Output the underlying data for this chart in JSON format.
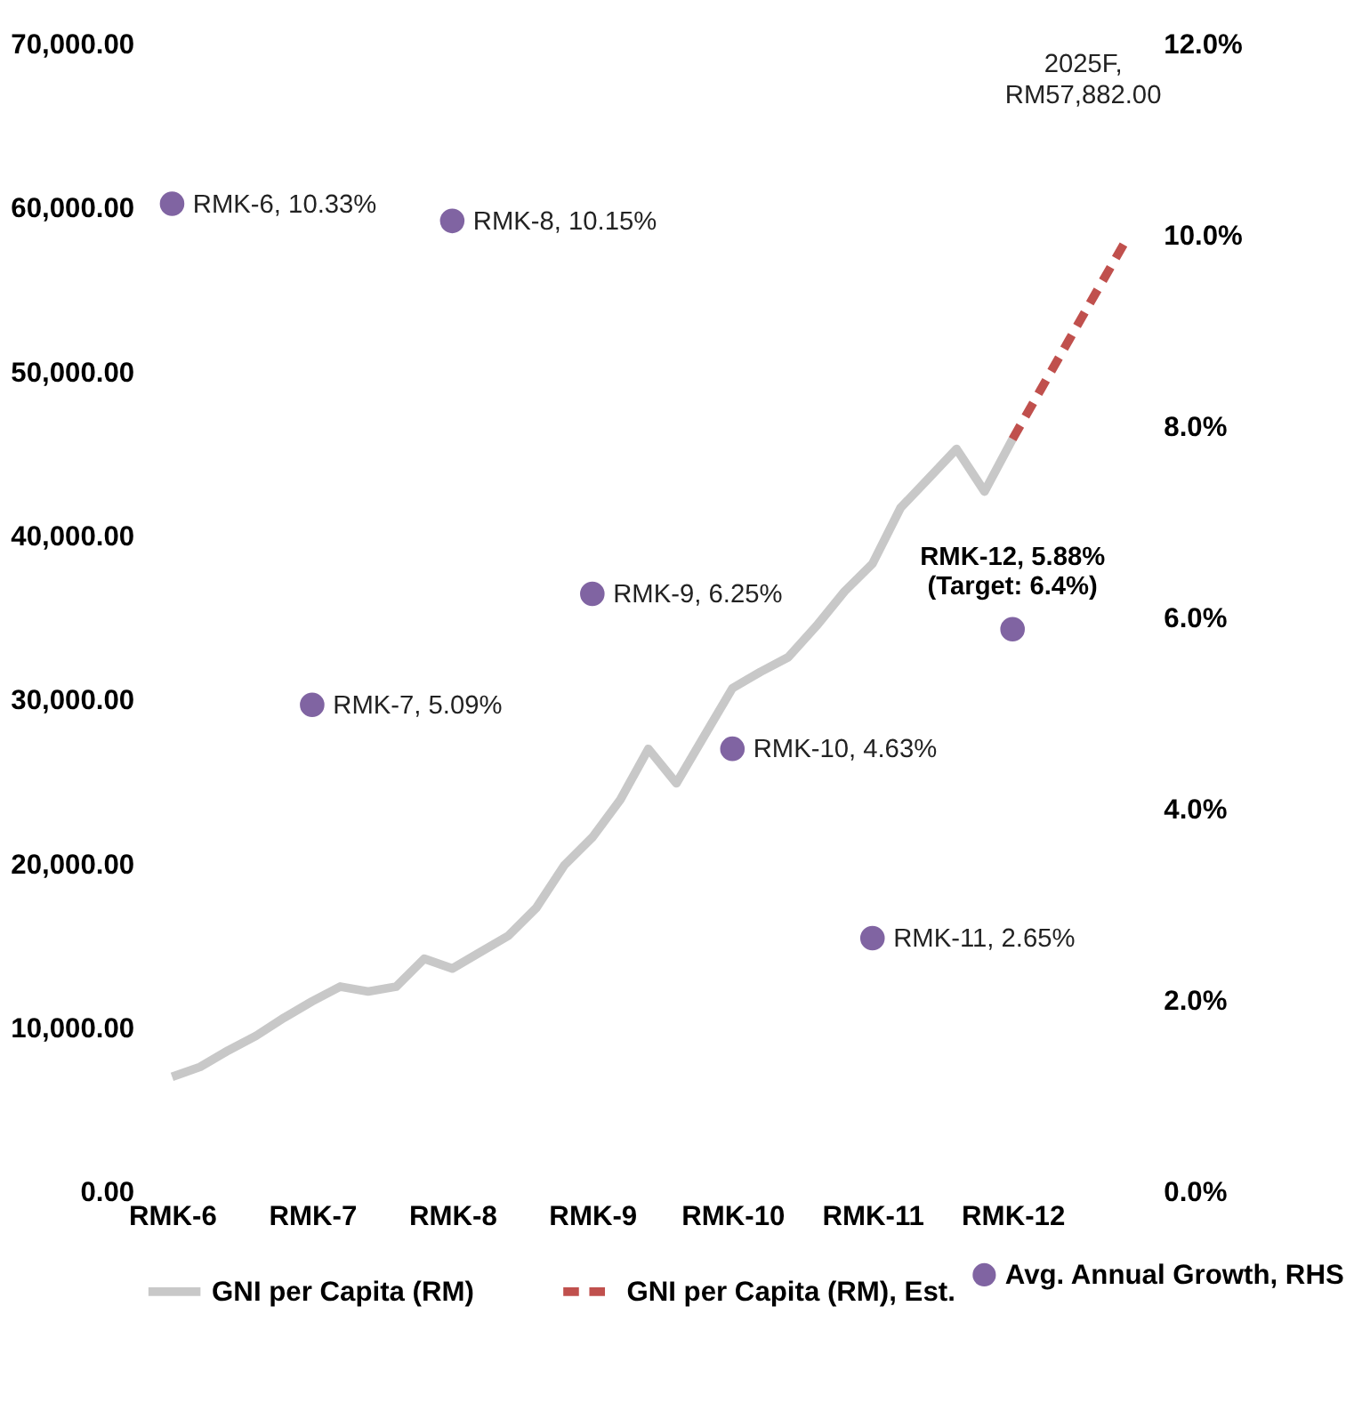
{
  "chart_data": {
    "type": "line",
    "categories": [
      "RMK-6",
      null,
      null,
      null,
      null,
      "RMK-7",
      null,
      null,
      null,
      null,
      "RMK-8",
      null,
      null,
      null,
      null,
      "RMK-9",
      null,
      null,
      null,
      null,
      "RMK-10",
      null,
      null,
      null,
      null,
      "RMK-11",
      null,
      null,
      null,
      null,
      "RMK-12",
      null,
      null,
      null,
      null
    ],
    "ylim": [
      0,
      70000
    ],
    "yticks": [
      {
        "value": 0,
        "label": "0.00"
      },
      {
        "value": 10000,
        "label": "10,000.00"
      },
      {
        "value": 20000,
        "label": "20,000.00"
      },
      {
        "value": 30000,
        "label": "30,000.00"
      },
      {
        "value": 40000,
        "label": "40,000.00"
      },
      {
        "value": 50000,
        "label": "50,000.00"
      },
      {
        "value": 60000,
        "label": "60,000.00"
      },
      {
        "value": 70000,
        "label": "70,000.00"
      }
    ],
    "y2lim": [
      0,
      12
    ],
    "y2ticks": [
      {
        "value": 0,
        "label": "0.0%"
      },
      {
        "value": 2,
        "label": "2.0%"
      },
      {
        "value": 4,
        "label": "4.0%"
      },
      {
        "value": 6,
        "label": "6.0%"
      },
      {
        "value": 8,
        "label": "8.0%"
      },
      {
        "value": 10,
        "label": "10.0%"
      },
      {
        "value": 12,
        "label": "12.0%"
      }
    ],
    "grid": false,
    "legend": "bottom",
    "series": [
      {
        "name": "GNI per Capita (RM)",
        "color": "#c8c8c8",
        "line_style": "solid",
        "values": [
          7000,
          7600,
          8600,
          9500,
          10600,
          11600,
          12500,
          12200,
          12500,
          14200,
          13600,
          14600,
          15600,
          17300,
          19900,
          21600,
          23900,
          27000,
          24900,
          27800,
          30700,
          31700,
          32600,
          34500,
          36600,
          38300,
          41700,
          43500,
          45300,
          42700,
          45900,
          null,
          null,
          null,
          null
        ]
      },
      {
        "name": "GNI per Capita (RM), Est.",
        "color": "#c0504d",
        "line_style": "dashed",
        "values": [
          null,
          null,
          null,
          null,
          null,
          null,
          null,
          null,
          null,
          null,
          null,
          null,
          null,
          null,
          null,
          null,
          null,
          null,
          null,
          null,
          null,
          null,
          null,
          null,
          null,
          null,
          null,
          null,
          null,
          null,
          45900,
          48900,
          51900,
          54900,
          57882
        ]
      },
      {
        "name": "Avg. Annual Growth, RHS",
        "type": "scatter",
        "axis": "y2",
        "color": "#8064a2",
        "marker": "circle",
        "values": [
          10.33,
          null,
          null,
          null,
          null,
          5.09,
          null,
          null,
          null,
          null,
          10.15,
          null,
          null,
          null,
          null,
          6.25,
          null,
          null,
          null,
          null,
          4.63,
          null,
          null,
          null,
          null,
          2.65,
          null,
          null,
          null,
          null,
          5.88,
          null,
          null,
          null,
          null
        ],
        "value_labels": [
          "RMK-6, 10.33%",
          null,
          null,
          null,
          null,
          "RMK-7, 5.09%",
          null,
          null,
          null,
          null,
          "RMK-8, 10.15%",
          null,
          null,
          null,
          null,
          "RMK-9, 6.25%",
          null,
          null,
          null,
          null,
          "RMK-10, 4.63%",
          null,
          null,
          null,
          null,
          "RMK-11, 2.65%",
          null,
          null,
          null,
          null,
          "RMK-12, 5.88%\n(Target: 6.4%)",
          null,
          null,
          null,
          null
        ]
      }
    ],
    "annotations": [
      "2025F,\nRM57,882.00"
    ]
  }
}
